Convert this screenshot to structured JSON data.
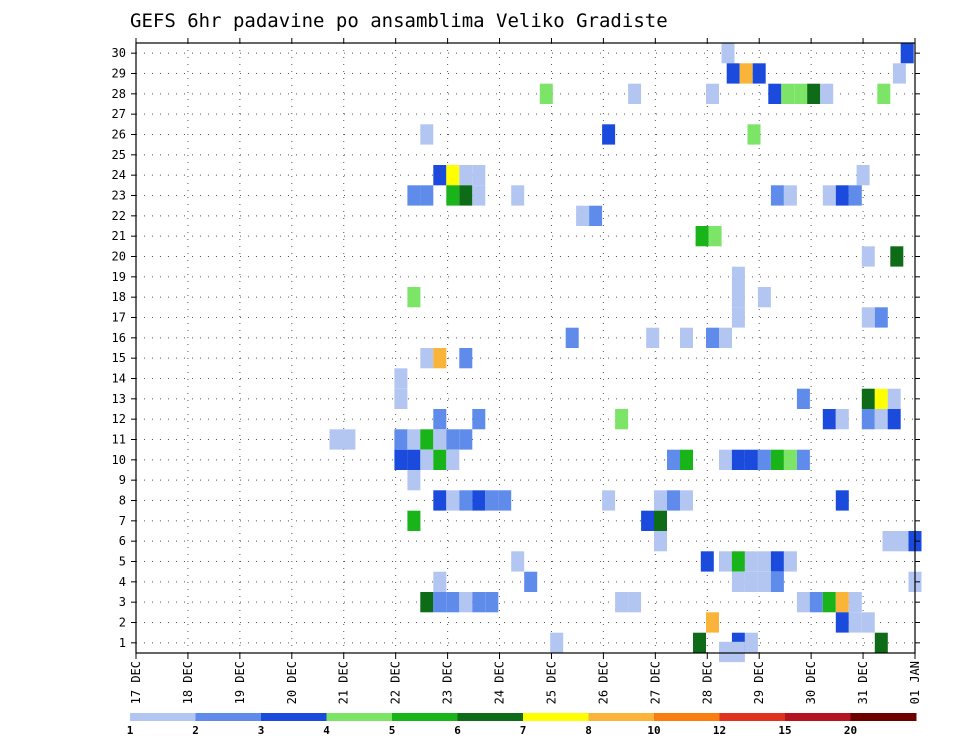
{
  "chart_data": {
    "type": "heatmap",
    "title": "GEFS 6hr padavine po ansamblima Veliko Gradiste",
    "xlabel": "",
    "ylabel": "",
    "x_tick_labels": [
      "17 DEC",
      "18 DEC",
      "19 DEC",
      "20 DEC",
      "21 DEC",
      "22 DEC",
      "23 DEC",
      "24 DEC",
      "25 DEC",
      "26 DEC",
      "27 DEC",
      "28 DEC",
      "29 DEC",
      "30 DEC",
      "31 DEC",
      "01 JAN"
    ],
    "xlim_days": [
      0,
      15
    ],
    "y_tick_labels": [
      "1",
      "2",
      "3",
      "4",
      "5",
      "6",
      "7",
      "8",
      "9",
      "10",
      "11",
      "12",
      "13",
      "14",
      "15",
      "16",
      "17",
      "18",
      "19",
      "20",
      "21",
      "22",
      "23",
      "24",
      "25",
      "26",
      "27",
      "28",
      "29",
      "30"
    ],
    "ylim": [
      0.5,
      30.5
    ],
    "grid": true,
    "legend_placement": "bottom",
    "legend": {
      "colors": [
        "#b3c6f2",
        "#5f8ceb",
        "#1a4bdc",
        "#7ce567",
        "#19b419",
        "#0e6b18",
        "#ffff00",
        "#fbb43a",
        "#fa7d0f",
        "#e0321e",
        "#b4141e",
        "#6e0000"
      ],
      "labels": [
        "1",
        "2",
        "3",
        "4",
        "5",
        "6",
        "7",
        "8",
        "10",
        "12",
        "15",
        "20"
      ]
    },
    "cell_width_steps": 0.25,
    "cells": [
      {
        "t": 11.4,
        "m": 30,
        "c": 0
      },
      {
        "t": 14.85,
        "m": 30,
        "c": 2
      },
      {
        "t": 11.5,
        "m": 29,
        "c": 2
      },
      {
        "t": 11.75,
        "m": 29,
        "c": 7
      },
      {
        "t": 12.0,
        "m": 29,
        "c": 2
      },
      {
        "t": 14.7,
        "m": 29,
        "c": 0
      },
      {
        "t": 7.9,
        "m": 28,
        "c": 3
      },
      {
        "t": 9.6,
        "m": 28,
        "c": 0
      },
      {
        "t": 11.1,
        "m": 28,
        "c": 0
      },
      {
        "t": 12.3,
        "m": 28,
        "c": 2
      },
      {
        "t": 12.55,
        "m": 28,
        "c": 3
      },
      {
        "t": 12.8,
        "m": 28,
        "c": 3
      },
      {
        "t": 13.05,
        "m": 28,
        "c": 5
      },
      {
        "t": 13.3,
        "m": 28,
        "c": 0
      },
      {
        "t": 14.4,
        "m": 28,
        "c": 3
      },
      {
        "t": 5.6,
        "m": 26,
        "c": 0
      },
      {
        "t": 9.1,
        "m": 26,
        "c": 2
      },
      {
        "t": 11.9,
        "m": 26,
        "c": 3
      },
      {
        "t": 5.85,
        "m": 24,
        "c": 2
      },
      {
        "t": 6.1,
        "m": 24,
        "c": 6
      },
      {
        "t": 6.35,
        "m": 24,
        "c": 0
      },
      {
        "t": 6.6,
        "m": 24,
        "c": 0
      },
      {
        "t": 14.0,
        "m": 24,
        "c": 0
      },
      {
        "t": 5.35,
        "m": 23,
        "c": 1
      },
      {
        "t": 5.6,
        "m": 23,
        "c": 1
      },
      {
        "t": 6.1,
        "m": 23,
        "c": 4
      },
      {
        "t": 6.35,
        "m": 23,
        "c": 5
      },
      {
        "t": 6.6,
        "m": 23,
        "c": 0
      },
      {
        "t": 7.35,
        "m": 23,
        "c": 0
      },
      {
        "t": 12.35,
        "m": 23,
        "c": 1
      },
      {
        "t": 12.6,
        "m": 23,
        "c": 0
      },
      {
        "t": 13.35,
        "m": 23,
        "c": 0
      },
      {
        "t": 13.6,
        "m": 23,
        "c": 2
      },
      {
        "t": 13.85,
        "m": 23,
        "c": 1
      },
      {
        "t": 8.6,
        "m": 22,
        "c": 0
      },
      {
        "t": 8.85,
        "m": 22,
        "c": 1
      },
      {
        "t": 10.9,
        "m": 21,
        "c": 4
      },
      {
        "t": 11.15,
        "m": 21,
        "c": 3
      },
      {
        "t": 14.1,
        "m": 20,
        "c": 0
      },
      {
        "t": 14.65,
        "m": 20,
        "c": 5
      },
      {
        "t": 11.6,
        "m": 19,
        "c": 0
      },
      {
        "t": 11.6,
        "m": 18,
        "c": 0
      },
      {
        "t": 5.35,
        "m": 18,
        "c": 3
      },
      {
        "t": 12.1,
        "m": 18,
        "c": 0
      },
      {
        "t": 11.6,
        "m": 17,
        "c": 0
      },
      {
        "t": 14.1,
        "m": 17,
        "c": 0
      },
      {
        "t": 14.35,
        "m": 17,
        "c": 1
      },
      {
        "t": 8.4,
        "m": 16,
        "c": 1
      },
      {
        "t": 9.95,
        "m": 16,
        "c": 0
      },
      {
        "t": 10.6,
        "m": 16,
        "c": 0
      },
      {
        "t": 11.1,
        "m": 16,
        "c": 1
      },
      {
        "t": 11.35,
        "m": 16,
        "c": 0
      },
      {
        "t": 5.6,
        "m": 15,
        "c": 0
      },
      {
        "t": 5.85,
        "m": 15,
        "c": 7
      },
      {
        "t": 6.35,
        "m": 15,
        "c": 1
      },
      {
        "t": 5.1,
        "m": 14,
        "c": 0
      },
      {
        "t": 5.1,
        "m": 13,
        "c": 0
      },
      {
        "t": 12.85,
        "m": 13,
        "c": 1
      },
      {
        "t": 14.1,
        "m": 13,
        "c": 5
      },
      {
        "t": 14.35,
        "m": 13,
        "c": 6
      },
      {
        "t": 14.6,
        "m": 13,
        "c": 0
      },
      {
        "t": 5.85,
        "m": 12,
        "c": 1
      },
      {
        "t": 6.6,
        "m": 12,
        "c": 1
      },
      {
        "t": 9.35,
        "m": 12,
        "c": 3
      },
      {
        "t": 13.35,
        "m": 12,
        "c": 2
      },
      {
        "t": 13.6,
        "m": 12,
        "c": 0
      },
      {
        "t": 14.1,
        "m": 12,
        "c": 1
      },
      {
        "t": 14.35,
        "m": 12,
        "c": 0
      },
      {
        "t": 14.6,
        "m": 12,
        "c": 2
      },
      {
        "t": 3.85,
        "m": 11,
        "c": 0
      },
      {
        "t": 4.1,
        "m": 11,
        "c": 0
      },
      {
        "t": 5.1,
        "m": 11,
        "c": 1
      },
      {
        "t": 5.35,
        "m": 11,
        "c": 0
      },
      {
        "t": 5.6,
        "m": 11,
        "c": 4
      },
      {
        "t": 5.85,
        "m": 11,
        "c": 0
      },
      {
        "t": 6.1,
        "m": 11,
        "c": 1
      },
      {
        "t": 6.35,
        "m": 11,
        "c": 1
      },
      {
        "t": 5.1,
        "m": 10,
        "c": 2
      },
      {
        "t": 5.35,
        "m": 10,
        "c": 2
      },
      {
        "t": 5.6,
        "m": 10,
        "c": 0
      },
      {
        "t": 5.85,
        "m": 10,
        "c": 4
      },
      {
        "t": 6.1,
        "m": 10,
        "c": 0
      },
      {
        "t": 10.35,
        "m": 10,
        "c": 1
      },
      {
        "t": 10.6,
        "m": 10,
        "c": 4
      },
      {
        "t": 11.35,
        "m": 10,
        "c": 0
      },
      {
        "t": 11.6,
        "m": 10,
        "c": 2
      },
      {
        "t": 11.85,
        "m": 10,
        "c": 2
      },
      {
        "t": 12.1,
        "m": 10,
        "c": 1
      },
      {
        "t": 12.35,
        "m": 10,
        "c": 4
      },
      {
        "t": 12.6,
        "m": 10,
        "c": 3
      },
      {
        "t": 12.85,
        "m": 10,
        "c": 1
      },
      {
        "t": 5.35,
        "m": 9,
        "c": 0
      },
      {
        "t": 5.85,
        "m": 8,
        "c": 2
      },
      {
        "t": 6.1,
        "m": 8,
        "c": 0
      },
      {
        "t": 6.35,
        "m": 8,
        "c": 1
      },
      {
        "t": 6.6,
        "m": 8,
        "c": 2
      },
      {
        "t": 6.85,
        "m": 8,
        "c": 1
      },
      {
        "t": 7.1,
        "m": 8,
        "c": 1
      },
      {
        "t": 9.1,
        "m": 8,
        "c": 0
      },
      {
        "t": 10.1,
        "m": 8,
        "c": 0
      },
      {
        "t": 10.35,
        "m": 8,
        "c": 1
      },
      {
        "t": 10.6,
        "m": 8,
        "c": 0
      },
      {
        "t": 13.6,
        "m": 8,
        "c": 2
      },
      {
        "t": 5.35,
        "m": 7,
        "c": 4
      },
      {
        "t": 9.85,
        "m": 7,
        "c": 2
      },
      {
        "t": 10.1,
        "m": 7,
        "c": 5
      },
      {
        "t": 10.1,
        "m": 6,
        "c": 0
      },
      {
        "t": 14.5,
        "m": 6,
        "c": 0
      },
      {
        "t": 14.75,
        "m": 6,
        "c": 0
      },
      {
        "t": 15.0,
        "m": 6,
        "c": 2
      },
      {
        "t": 7.35,
        "m": 5,
        "c": 0
      },
      {
        "t": 11.0,
        "m": 5,
        "c": 2
      },
      {
        "t": 11.35,
        "m": 5,
        "c": 0
      },
      {
        "t": 11.6,
        "m": 5,
        "c": 4
      },
      {
        "t": 11.85,
        "m": 5,
        "c": 0
      },
      {
        "t": 12.1,
        "m": 5,
        "c": 0
      },
      {
        "t": 12.35,
        "m": 5,
        "c": 2
      },
      {
        "t": 12.6,
        "m": 5,
        "c": 0
      },
      {
        "t": 5.85,
        "m": 4,
        "c": 0
      },
      {
        "t": 7.6,
        "m": 4,
        "c": 1
      },
      {
        "t": 11.6,
        "m": 4,
        "c": 0
      },
      {
        "t": 11.85,
        "m": 4,
        "c": 0
      },
      {
        "t": 12.1,
        "m": 4,
        "c": 0
      },
      {
        "t": 12.35,
        "m": 4,
        "c": 1
      },
      {
        "t": 15.0,
        "m": 4,
        "c": 0
      },
      {
        "t": 5.6,
        "m": 3,
        "c": 5
      },
      {
        "t": 5.85,
        "m": 3,
        "c": 1
      },
      {
        "t": 6.1,
        "m": 3,
        "c": 1
      },
      {
        "t": 6.35,
        "m": 3,
        "c": 0
      },
      {
        "t": 6.6,
        "m": 3,
        "c": 1
      },
      {
        "t": 6.85,
        "m": 3,
        "c": 1
      },
      {
        "t": 9.35,
        "m": 3,
        "c": 0
      },
      {
        "t": 9.6,
        "m": 3,
        "c": 0
      },
      {
        "t": 12.85,
        "m": 3,
        "c": 0
      },
      {
        "t": 13.1,
        "m": 3,
        "c": 1
      },
      {
        "t": 13.35,
        "m": 3,
        "c": 4
      },
      {
        "t": 13.6,
        "m": 3,
        "c": 7
      },
      {
        "t": 13.85,
        "m": 3,
        "c": 0
      },
      {
        "t": 11.1,
        "m": 2,
        "c": 7
      },
      {
        "t": 13.6,
        "m": 2,
        "c": 2
      },
      {
        "t": 13.85,
        "m": 2,
        "c": 0
      },
      {
        "t": 14.1,
        "m": 2,
        "c": 0
      },
      {
        "t": 8.1,
        "m": 1,
        "c": 0
      },
      {
        "t": 10.85,
        "m": 1,
        "c": 5
      },
      {
        "t": 11.6,
        "m": 1,
        "c": 2
      },
      {
        "t": 11.85,
        "m": 1,
        "c": 0
      },
      {
        "t": 14.35,
        "m": 1,
        "c": 5
      },
      {
        "t": 11.35,
        "m": 0.55,
        "c": 0
      },
      {
        "t": 11.6,
        "m": 0.55,
        "c": 0
      }
    ]
  }
}
